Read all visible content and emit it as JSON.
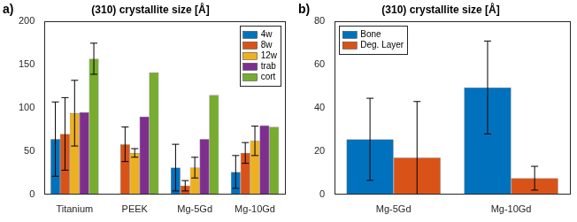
{
  "chart_data": [
    {
      "type": "bar",
      "annotations": [
        "a)"
      ],
      "title": "(310) crystallite size [Å]",
      "categories": [
        "Titanium",
        "PEEK",
        "Mg-5Gd",
        "Mg-10Gd"
      ],
      "series": [
        {
          "name": "4w",
          "color": "#0072BD",
          "values": [
            64,
            null,
            31,
            26
          ],
          "errors": [
            43,
            null,
            27,
            19
          ]
        },
        {
          "name": "8w",
          "color": "#D95319",
          "values": [
            70,
            58,
            10,
            48
          ],
          "errors": [
            42,
            20,
            6,
            12
          ]
        },
        {
          "name": "12w",
          "color": "#EDB120",
          "values": [
            94,
            48,
            31,
            62
          ],
          "errors": [
            38,
            5,
            12,
            17
          ]
        },
        {
          "name": "trab",
          "color": "#7E2F8E",
          "values": [
            95,
            90,
            64,
            80
          ],
          "errors": [
            null,
            null,
            null,
            null
          ]
        },
        {
          "name": "cort",
          "color": "#77AC30",
          "values": [
            157,
            141,
            115,
            78
          ],
          "errors": [
            18,
            null,
            null,
            null
          ]
        }
      ],
      "ylim": [
        0,
        200
      ],
      "yticks": [
        0,
        50,
        100,
        150,
        200
      ],
      "grid": false,
      "legend": "upper right"
    },
    {
      "type": "bar",
      "annotations": [
        "b)"
      ],
      "title": "(310) crystallite size [Å]",
      "categories": [
        "Mg-5Gd",
        "Mg-10Gd"
      ],
      "series": [
        {
          "name": "Bone",
          "color": "#0072BD",
          "values": [
            25.5,
            49.5
          ],
          "errors": [
            19,
            21.5
          ]
        },
        {
          "name": "Deg. Layer",
          "color": "#D95319",
          "values": [
            17,
            7.5
          ],
          "errors": [
            26,
            5.5
          ]
        }
      ],
      "ylim": [
        0,
        80
      ],
      "yticks": [
        0,
        20,
        40,
        60,
        80
      ],
      "grid": false,
      "legend": "upper left"
    }
  ]
}
